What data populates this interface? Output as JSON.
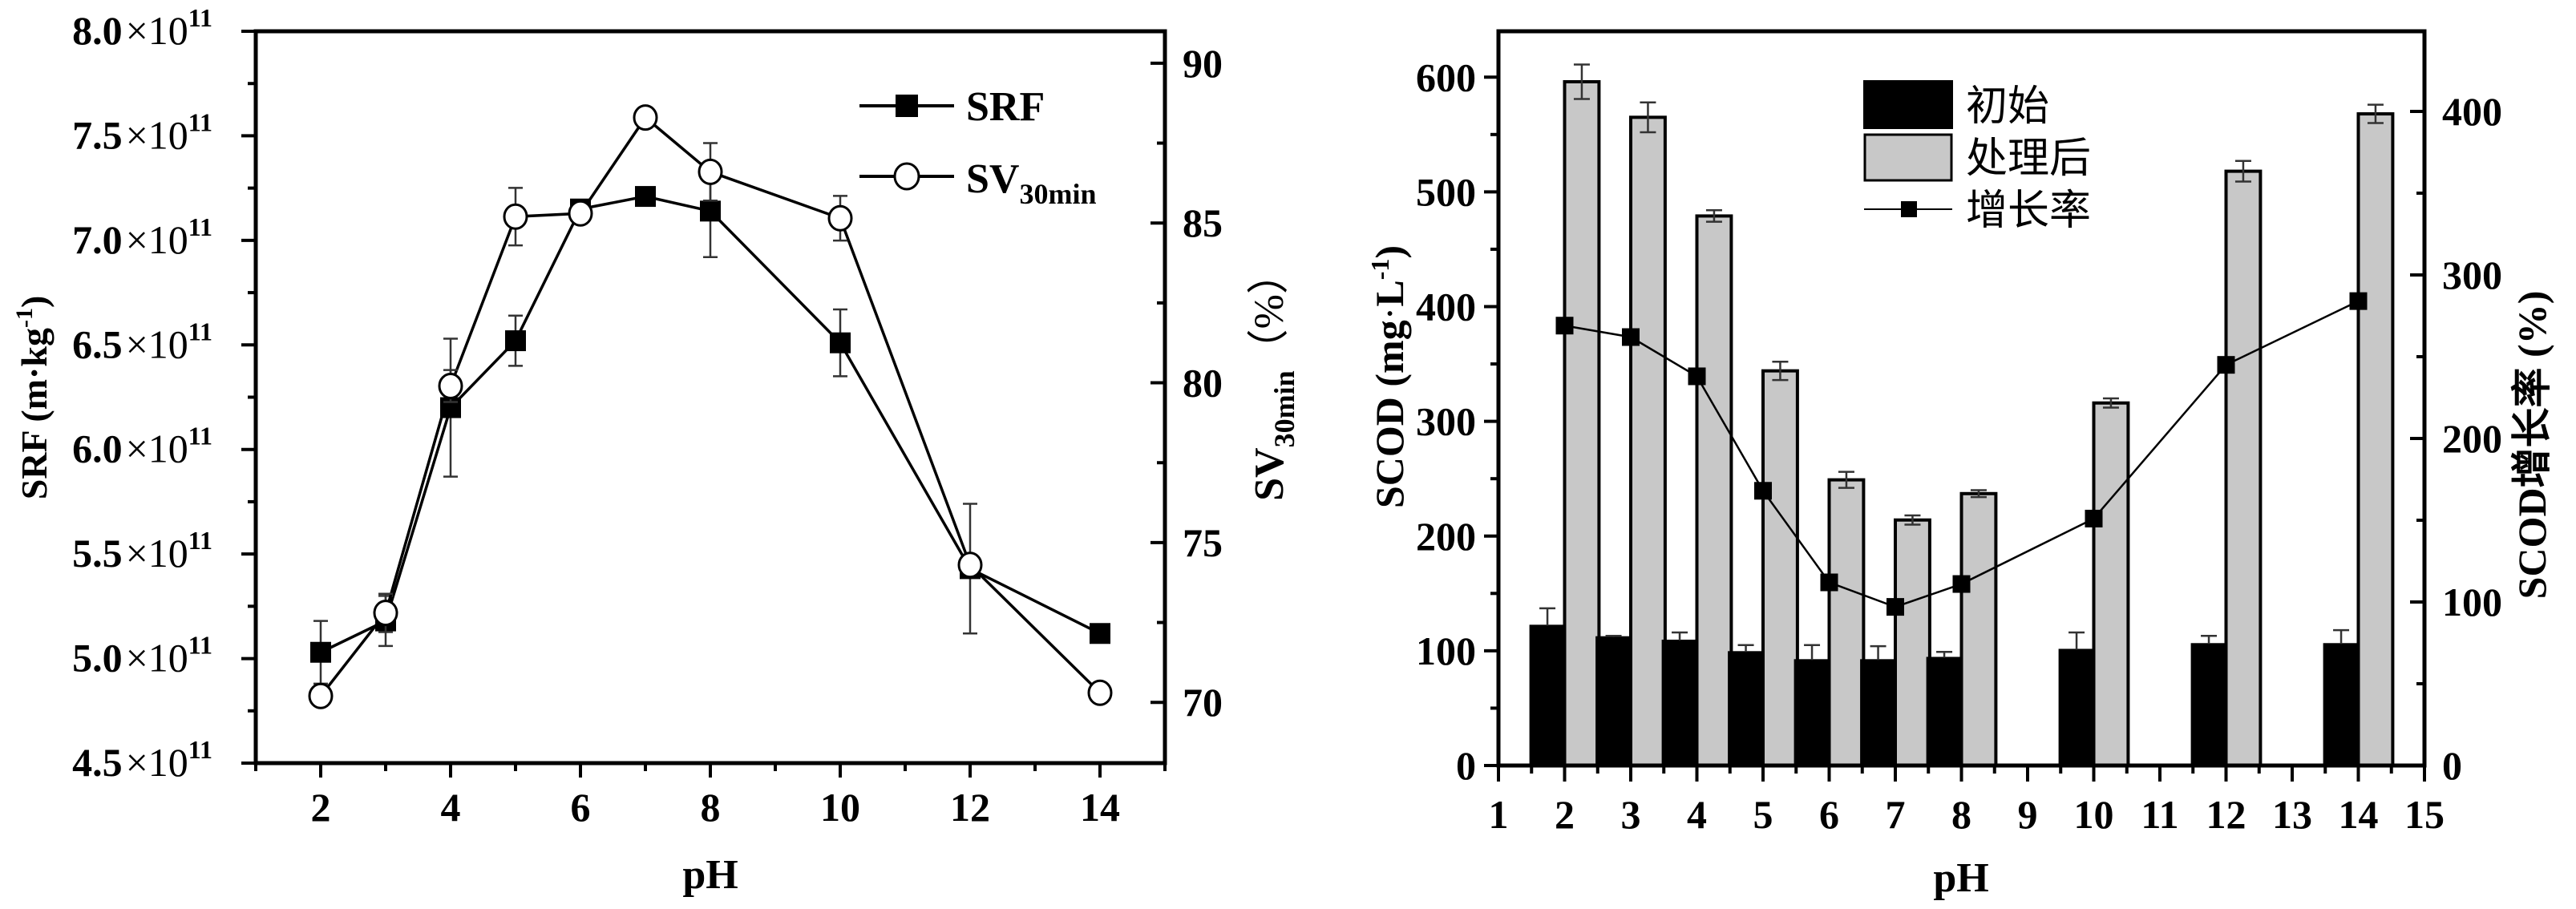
{
  "chart_data": [
    {
      "type": "line",
      "title": "",
      "xlabel": "pH",
      "ylabel": "SRF (m·kg-1)",
      "ylabel_parts": {
        "main": "SRF (m·kg",
        "sup": "-1",
        "close": ")"
      },
      "y2label": "SV30min（%）",
      "y2label_parts": {
        "main": "SV",
        "sub": "30min",
        "rest": "（%）"
      },
      "xlim": [
        1,
        15
      ],
      "ylim": [
        4.5,
        8.0
      ],
      "y_multiplier_label": "×10",
      "y_exponent": "11",
      "y2lim": [
        68.1,
        91
      ],
      "x_ticks": [
        2,
        4,
        6,
        8,
        10,
        12,
        14
      ],
      "x_tick_labels": [
        "2",
        "4",
        "6",
        "8",
        "10",
        "12",
        "14"
      ],
      "y_ticks": [
        4.5,
        5.0,
        5.5,
        6.0,
        6.5,
        7.0,
        7.5,
        8.0
      ],
      "y_tick_labels": [
        "4.5",
        "5.0",
        "5.5",
        "6.0",
        "6.5",
        "7.0",
        "7.5",
        "8.0"
      ],
      "y2_ticks": [
        70,
        75,
        80,
        85,
        90
      ],
      "y2_tick_labels": [
        "70",
        "75",
        "80",
        "85",
        "90"
      ],
      "grid": false,
      "legend_position": "top-right",
      "legend": [
        {
          "name": "SRF",
          "label": "SRF",
          "marker": "filled-square"
        },
        {
          "name": "SV30min",
          "label_main": "SV",
          "label_sub": "30min",
          "marker": "open-circle"
        }
      ],
      "series": [
        {
          "name": "SRF",
          "axis": "left",
          "x": [
            2,
            3,
            4,
            5,
            6,
            7,
            8,
            10,
            12,
            14
          ],
          "values": [
            5.03,
            5.18,
            6.2,
            6.52,
            7.15,
            7.21,
            7.14,
            6.51,
            5.43,
            5.12
          ],
          "error": [
            0.15,
            0.12,
            0.33,
            0.12,
            0.02,
            0.01,
            0.22,
            0.16,
            0.31,
            0.0
          ]
        },
        {
          "name": "SV30min",
          "axis": "right",
          "x": [
            2,
            3,
            4,
            5,
            6,
            7,
            8,
            10,
            12,
            14
          ],
          "values": [
            70.2,
            72.8,
            79.9,
            85.2,
            85.3,
            88.3,
            86.6,
            85.15,
            74.3,
            70.3
          ],
          "error": [
            0.3,
            0.6,
            0.5,
            0.9,
            0.3,
            0.3,
            0.9,
            0.7,
            0.3,
            0.3
          ]
        }
      ]
    },
    {
      "type": "bar",
      "title": "",
      "xlabel": "pH",
      "ylabel": "SCOD (mg·L-1)",
      "ylabel_parts": {
        "main": "SCOD (mg",
        "dot": "·",
        "L": "L",
        "sup": "-1",
        "close": ")"
      },
      "y2label": "SCOD增长率 (%)",
      "xlim": [
        1,
        15
      ],
      "ylim": [
        0,
        640
      ],
      "y2lim": [
        0,
        449
      ],
      "x_ticks": [
        1,
        2,
        3,
        4,
        5,
        6,
        7,
        8,
        9,
        10,
        11,
        12,
        13,
        14,
        15
      ],
      "x_tick_labels": [
        "1",
        "2",
        "3",
        "4",
        "5",
        "6",
        "7",
        "8",
        "9",
        "10",
        "11",
        "12",
        "13",
        "14",
        "15"
      ],
      "y_ticks": [
        0,
        100,
        200,
        300,
        400,
        500,
        600
      ],
      "y_tick_labels": [
        "0",
        "100",
        "200",
        "300",
        "400",
        "500",
        "600"
      ],
      "y2_ticks": [
        0,
        100,
        200,
        300,
        400
      ],
      "y2_tick_labels": [
        "0",
        "100",
        "200",
        "300",
        "400"
      ],
      "grid": false,
      "legend_position": "top-center",
      "legend": [
        {
          "name": "初始",
          "label": "初始",
          "swatch": "#000000"
        },
        {
          "name": "处理后",
          "label": "处理后",
          "swatch": "#c8c8c8"
        },
        {
          "name": "增长率",
          "label": "增长率",
          "marker": "filled-square-line"
        }
      ],
      "categories": [
        2,
        3,
        4,
        5,
        6,
        7,
        8,
        10,
        12,
        14
      ],
      "series": [
        {
          "name": "初始",
          "axis": "left",
          "color": "#000000",
          "values": [
            122,
            112,
            109,
            99,
            92,
            92,
            94,
            101,
            106,
            106
          ],
          "error": [
            15,
            1,
            7,
            6,
            13,
            12,
            5,
            15,
            7,
            12
          ]
        },
        {
          "name": "处理后",
          "axis": "left",
          "color": "#c8c8c8",
          "values": [
            596,
            565,
            479,
            344,
            249,
            214,
            237,
            316,
            518,
            568
          ],
          "error": [
            15,
            13,
            5,
            8,
            7,
            4,
            3,
            4,
            9,
            8
          ]
        },
        {
          "name": "增长率",
          "type": "line",
          "axis": "right",
          "values": [
            269,
            262,
            238,
            168,
            112,
            97,
            111,
            151,
            245,
            284
          ]
        }
      ]
    }
  ]
}
